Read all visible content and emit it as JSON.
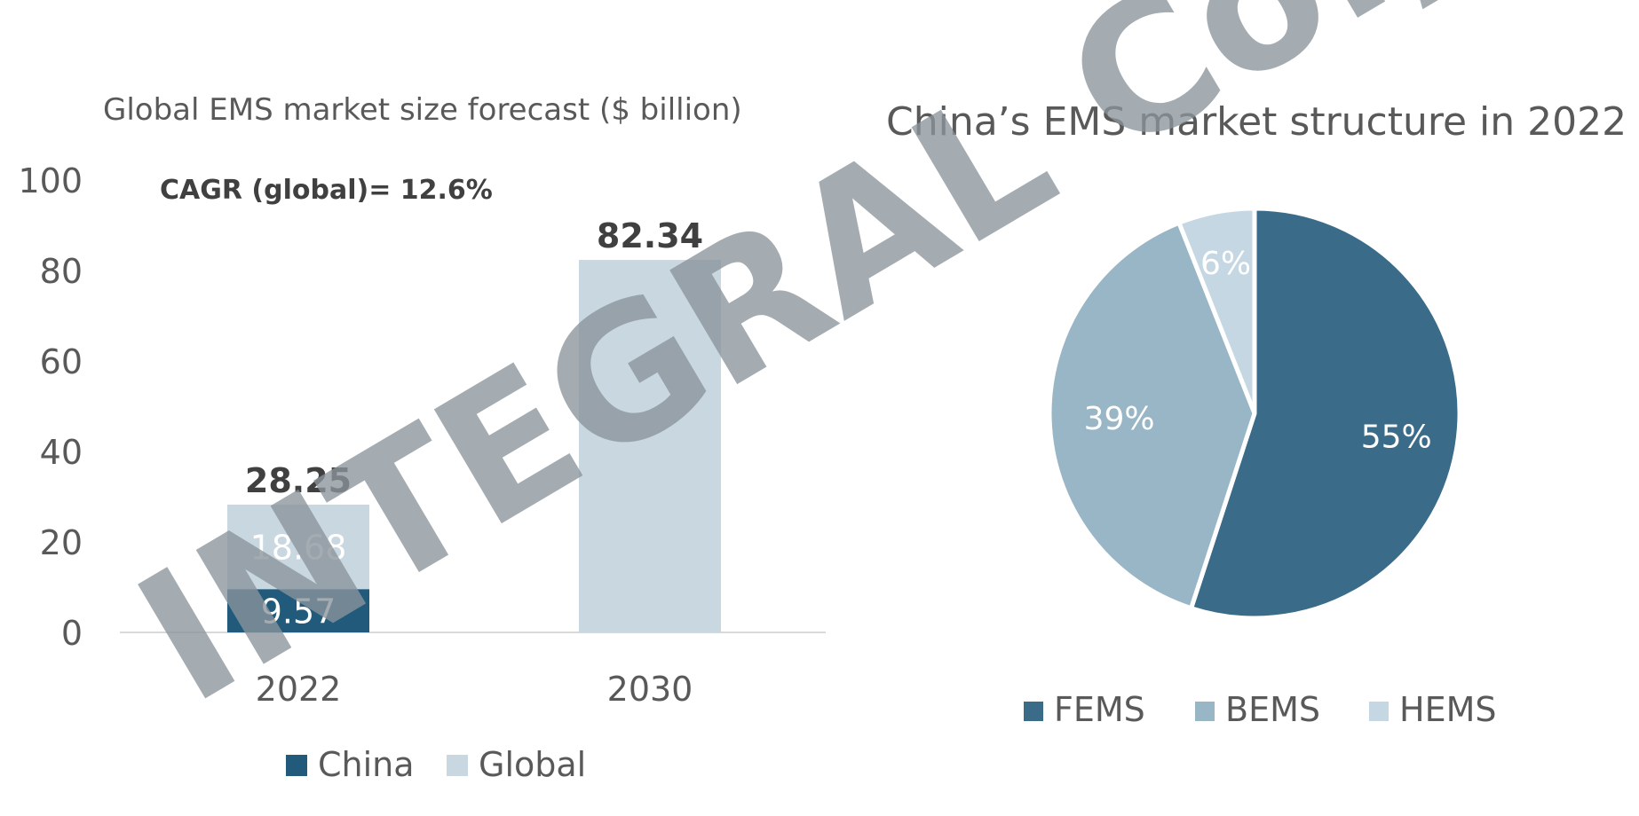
{
  "watermark": "INTEGRAL Co., Ltd",
  "chart_data": [
    {
      "type": "bar",
      "stacked": true,
      "title": "Global EMS market size forecast ($ billion)",
      "annotation": "CAGR (global)= 12.6%",
      "categories": [
        "2022",
        "2030"
      ],
      "series": [
        {
          "name": "China",
          "values": [
            9.57,
            null
          ],
          "labels": [
            "9.57",
            ""
          ],
          "color": "#215a7b"
        },
        {
          "name": "Global",
          "values": [
            18.68,
            82.34
          ],
          "labels": [
            "18.68",
            ""
          ],
          "color": "#c8d7e0"
        }
      ],
      "totals": [
        28.25,
        82.34
      ],
      "total_labels": [
        "28.25",
        "82.34"
      ],
      "yticks": [
        "0",
        "20",
        "40",
        "60",
        "80",
        "100"
      ],
      "ylim": [
        0,
        100
      ],
      "grid": false,
      "legend": "bottom"
    },
    {
      "type": "pie",
      "title": "China’s EMS market structure in 2022",
      "slices": [
        {
          "name": "FEMS",
          "value": 55,
          "label": "55%",
          "color": "#3a6b89"
        },
        {
          "name": "BEMS",
          "value": 39,
          "label": "39%",
          "color": "#99b6c6"
        },
        {
          "name": "HEMS",
          "value": 6,
          "label": "6%",
          "color": "#c6d7e4"
        }
      ],
      "legend": "bottom"
    }
  ]
}
